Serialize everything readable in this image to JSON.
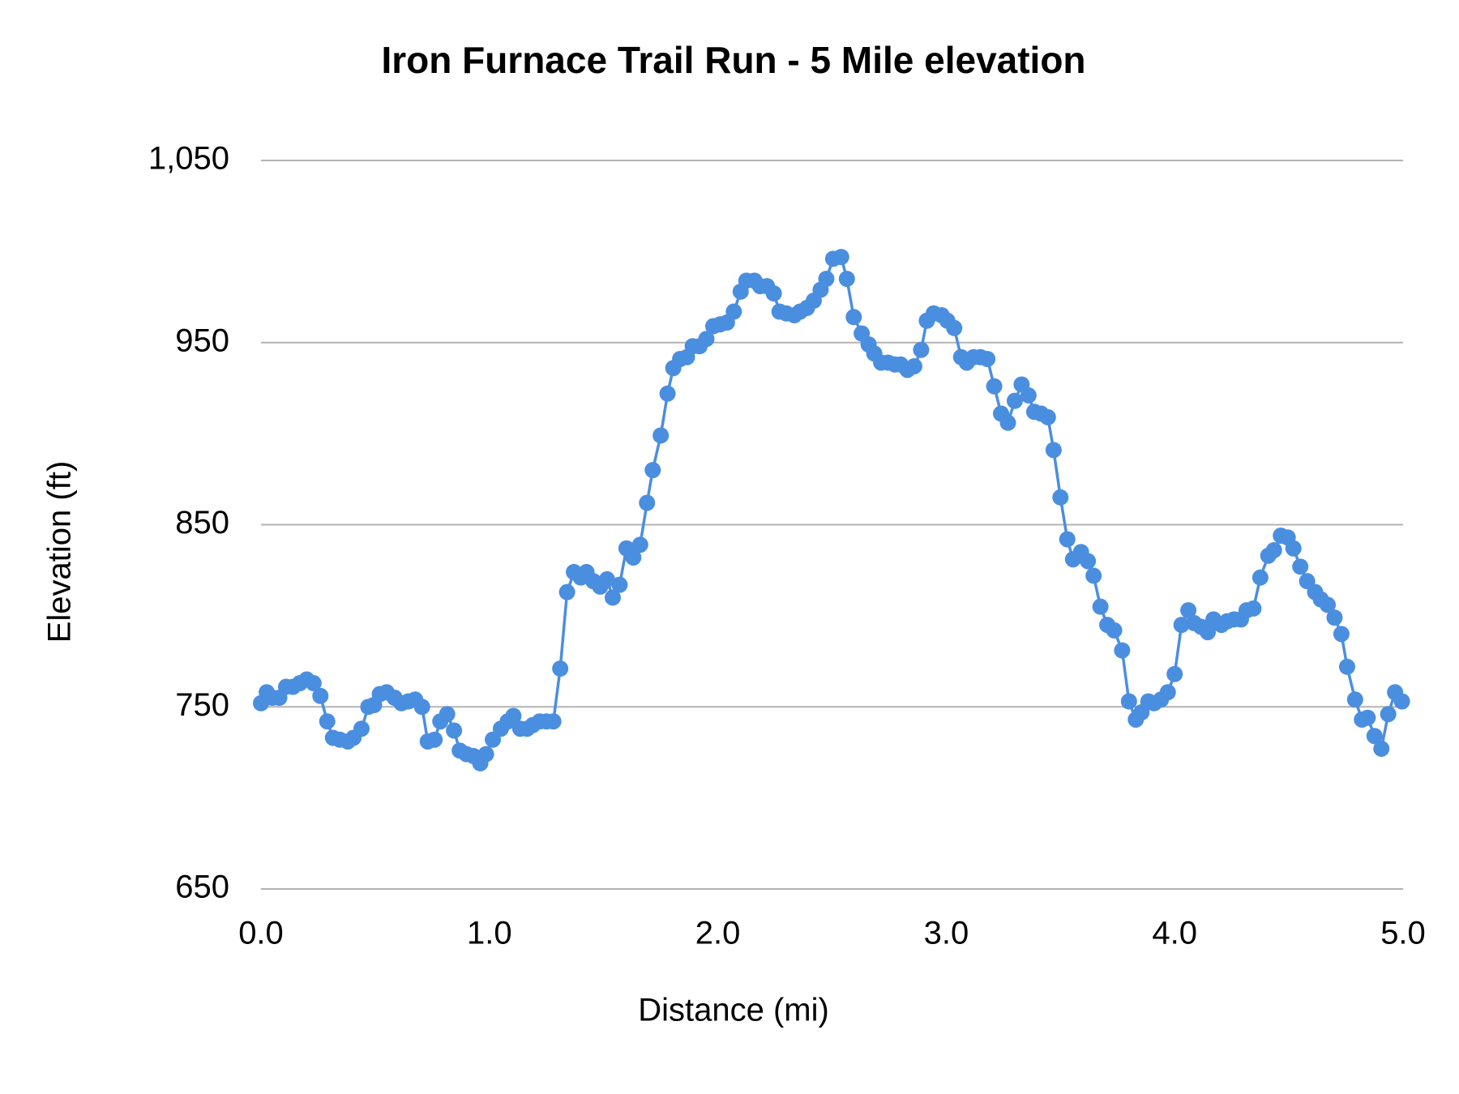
{
  "chart_data": {
    "type": "line",
    "title": "Iron Furnace Trail Run - 5 Mile elevation",
    "x_label": "Distance (mi)",
    "y_label": "Elevation (ft)",
    "xlim": [
      0,
      5
    ],
    "ylim": [
      650,
      1050
    ],
    "xticks": [
      {
        "value": 0,
        "label": "0.0"
      },
      {
        "value": 1,
        "label": "1.0"
      },
      {
        "value": 2,
        "label": "2.0"
      },
      {
        "value": 3,
        "label": "3.0"
      },
      {
        "value": 4,
        "label": "4.0"
      },
      {
        "value": 5,
        "label": "5.0"
      }
    ],
    "yticks": [
      650,
      750,
      850,
      950,
      {
        "value": 1050,
        "label": "1,050"
      }
    ],
    "grid": true,
    "x": [
      0.0,
      0.025,
      0.05,
      0.08,
      0.11,
      0.14,
      0.17,
      0.2,
      0.23,
      0.26,
      0.29,
      0.315,
      0.345,
      0.38,
      0.405,
      0.44,
      0.47,
      0.495,
      0.52,
      0.55,
      0.585,
      0.615,
      0.645,
      0.675,
      0.705,
      0.73,
      0.76,
      0.785,
      0.815,
      0.845,
      0.87,
      0.9,
      0.93,
      0.96,
      0.985,
      1.015,
      1.05,
      1.08,
      1.105,
      1.135,
      1.165,
      1.19,
      1.22,
      1.25,
      1.28,
      1.31,
      1.34,
      1.37,
      1.4,
      1.425,
      1.455,
      1.485,
      1.515,
      1.54,
      1.57,
      1.6,
      1.63,
      1.66,
      1.69,
      1.715,
      1.75,
      1.78,
      1.805,
      1.835,
      1.865,
      1.89,
      1.92,
      1.95,
      1.98,
      2.01,
      2.04,
      2.07,
      2.1,
      2.125,
      2.16,
      2.185,
      2.215,
      2.245,
      2.27,
      2.3,
      2.335,
      2.36,
      2.39,
      2.42,
      2.45,
      2.475,
      2.505,
      2.54,
      2.565,
      2.595,
      2.63,
      2.66,
      2.685,
      2.715,
      2.745,
      2.775,
      2.8,
      2.83,
      2.86,
      2.89,
      2.915,
      2.945,
      2.98,
      3.005,
      3.035,
      3.065,
      3.09,
      3.12,
      3.15,
      3.18,
      3.21,
      3.24,
      3.27,
      3.3,
      3.33,
      3.36,
      3.385,
      3.415,
      3.445,
      3.47,
      3.5,
      3.53,
      3.555,
      3.59,
      3.62,
      3.645,
      3.675,
      3.705,
      3.735,
      3.77,
      3.8,
      3.83,
      3.855,
      3.885,
      3.91,
      3.94,
      3.97,
      4.0,
      4.03,
      4.06,
      4.085,
      4.115,
      4.145,
      4.17,
      4.205,
      4.23,
      4.26,
      4.29,
      4.315,
      4.345,
      4.375,
      4.41,
      4.435,
      4.465,
      4.495,
      4.52,
      4.55,
      4.58,
      4.615,
      4.64,
      4.67,
      4.7,
      4.73,
      4.755,
      4.79,
      4.82,
      4.845,
      4.875,
      4.905,
      4.935,
      4.965,
      4.995
    ],
    "series": [
      {
        "color": "#4a8ee0",
        "values": [
          752,
          758,
          755,
          755,
          761,
          761,
          763,
          765,
          763,
          756,
          742,
          733,
          732,
          731,
          733,
          738,
          750,
          751,
          757,
          758,
          755,
          752,
          753,
          754,
          750,
          731,
          732,
          742,
          746,
          737,
          726,
          724,
          723,
          719,
          724,
          732,
          738,
          742,
          745,
          738,
          738,
          740,
          742,
          742,
          742,
          771,
          813,
          824,
          821,
          824,
          819,
          816,
          820,
          810,
          817,
          837,
          832,
          839,
          862,
          880,
          899,
          922,
          936,
          941,
          942,
          948,
          948,
          952,
          959,
          960,
          961,
          967,
          978,
          984,
          984,
          981,
          981,
          977,
          967,
          966,
          965,
          967,
          969,
          973,
          979,
          985,
          996,
          997,
          985,
          964,
          955,
          949,
          944,
          939,
          939,
          938,
          938,
          935,
          937,
          946,
          962,
          966,
          965,
          962,
          958,
          942,
          939,
          942,
          942,
          941,
          926,
          911,
          906,
          918,
          927,
          921,
          912,
          911,
          909,
          891,
          865,
          842,
          831,
          835,
          830,
          822,
          805,
          795,
          792,
          781,
          753,
          743,
          747,
          753,
          752,
          754,
          758,
          768,
          795,
          803,
          796,
          794,
          791,
          798,
          795,
          797,
          798,
          798,
          803,
          804,
          821,
          833,
          836,
          844,
          843,
          837,
          827,
          819,
          813,
          809,
          806,
          799,
          790,
          772,
          754,
          743,
          744,
          734,
          727,
          746,
          758,
          753
        ]
      }
    ]
  }
}
